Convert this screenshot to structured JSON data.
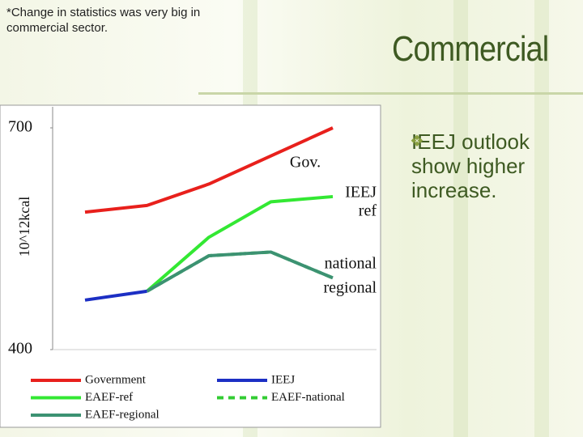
{
  "slide": {
    "note": "*Change in statistics was very big in commercial sector.",
    "title": "Commercial",
    "bullet": "IEEJ outlook show higher increase."
  },
  "chart_data": {
    "type": "line",
    "ylabel": "10^12kcal",
    "categories": [
      null,
      null,
      null,
      null,
      null
    ],
    "ylim": [
      400,
      700
    ],
    "yticks": [
      400,
      700
    ],
    "grid": false,
    "series": [
      {
        "name": "Government",
        "color": "#e8201c",
        "dashed": false,
        "values": [
          586,
          595,
          624,
          662,
          700
        ]
      },
      {
        "name": "IEEJ",
        "color": "#1c2fc4",
        "dashed": false,
        "values": [
          467,
          479,
          null,
          null,
          null
        ]
      },
      {
        "name": "EAEF-ref",
        "color": "#33e833",
        "dashed": false,
        "values": [
          null,
          479,
          552,
          600,
          607
        ]
      },
      {
        "name": "EAEF-national",
        "color": "#33cc33",
        "dashed": true,
        "values": [
          null,
          479,
          527,
          532,
          497
        ]
      },
      {
        "name": "EAEF-regional",
        "color": "#3c9272",
        "dashed": false,
        "values": [
          null,
          479,
          527,
          532,
          497
        ]
      }
    ],
    "annotations": [
      "Gov.",
      "IEEJ",
      "ref",
      "national",
      "regional"
    ]
  }
}
